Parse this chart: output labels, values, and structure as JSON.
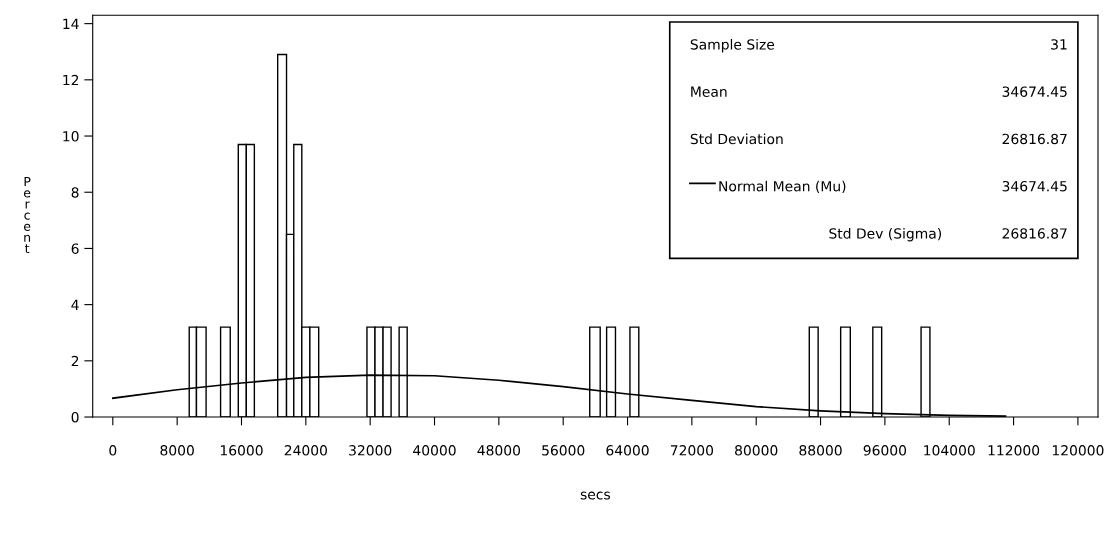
{
  "chart_data": {
    "type": "histogram",
    "bins": [
      9500,
      10400,
      11600,
      13400,
      14600,
      15600,
      16600,
      17600,
      20500,
      21600,
      22500,
      23500,
      24500,
      25600,
      31600,
      32600,
      33600,
      34600,
      35600,
      36600,
      59300,
      60600,
      61400,
      62500,
      64300,
      65400,
      86600,
      87700,
      90500,
      91700,
      94500,
      95600,
      100500,
      101600
    ],
    "values": [
      3.2,
      3.2,
      0,
      3.2,
      0,
      9.7,
      9.7,
      0,
      12.9,
      6.5,
      9.7,
      3.2,
      3.2,
      0,
      3.2,
      3.2,
      3.2,
      0,
      3.2,
      0,
      3.2,
      0,
      3.2,
      0,
      3.2,
      0,
      3.2,
      0,
      3.2,
      0,
      3.2,
      0,
      3.2
    ],
    "color": "#ffffff",
    "series": [
      {
        "type": "line",
        "name": "Normal Mean (Mu)",
        "color": "#000000",
        "x": [
          0,
          8000,
          16000,
          24000,
          32000,
          40000,
          48000,
          56000,
          64000,
          72000,
          80000,
          88000,
          96000,
          104000,
          111000
        ],
        "values": [
          0.67,
          0.97,
          1.21,
          1.41,
          1.49,
          1.47,
          1.31,
          1.08,
          0.82,
          0.59,
          0.37,
          0.22,
          0.12,
          0.06,
          0.03
        ]
      }
    ],
    "xlabel": "secs",
    "ylabel": "Percent",
    "xlim": [
      -2500,
      122500
    ],
    "xticks": [
      0,
      8000,
      16000,
      24000,
      32000,
      40000,
      48000,
      56000,
      64000,
      72000,
      80000,
      88000,
      96000,
      104000,
      112000,
      120000
    ],
    "ylim": [
      0,
      14.3
    ],
    "yticks": [
      0,
      2,
      4,
      6,
      8,
      10,
      12,
      14
    ],
    "annotations": [
      "Sample Size",
      "31",
      "Mean",
      "34674.45",
      "Std Deviation",
      "26816.87",
      "34674.45",
      "Std Dev (Sigma)",
      "26816.87"
    ],
    "legend": "top right",
    "grid": false
  }
}
